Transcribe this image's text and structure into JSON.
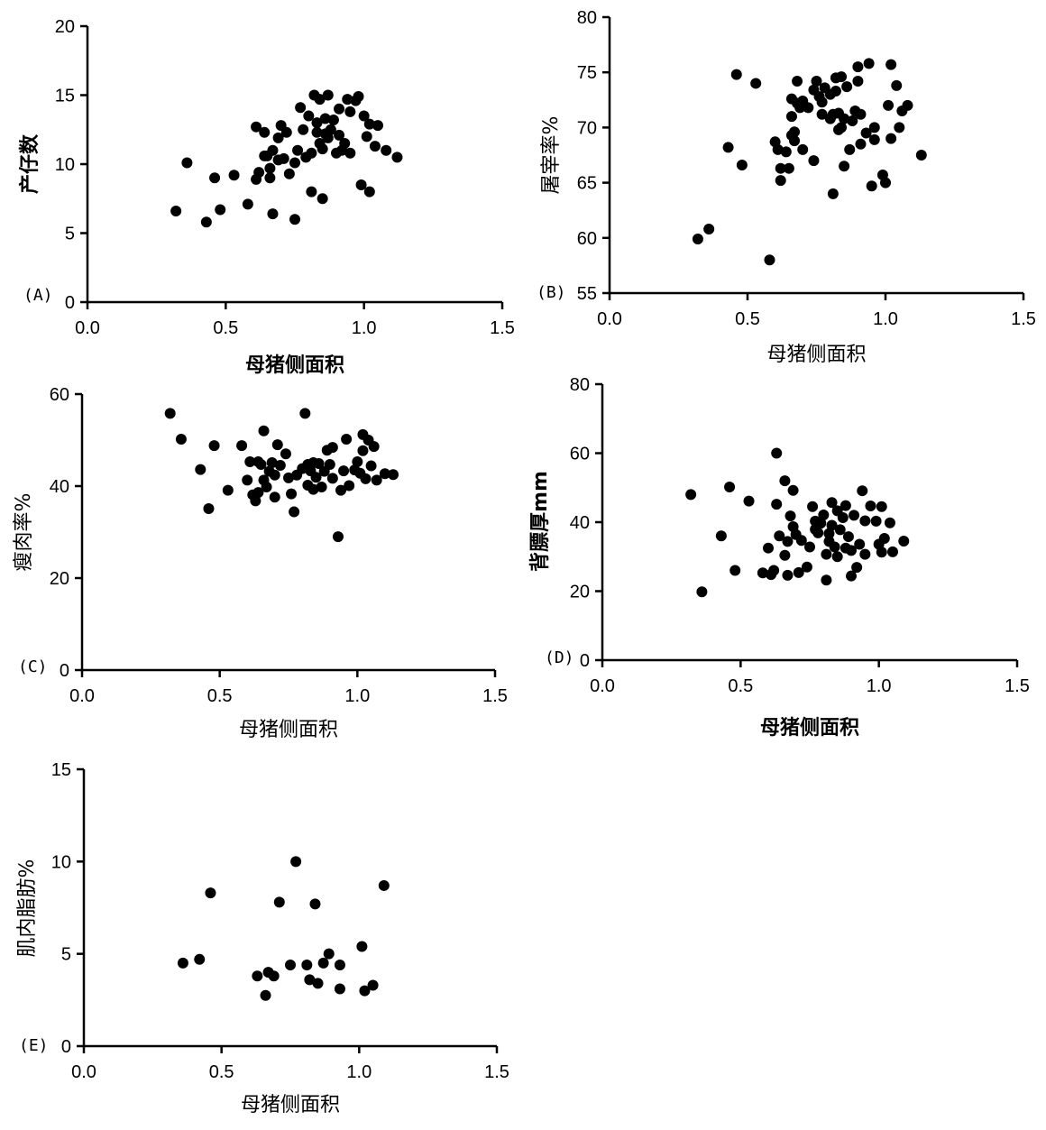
{
  "chart_data": [
    {
      "type": "scatter",
      "panel": "(A)",
      "xlabel": "母猪侧面积",
      "ylabel": "产仔数",
      "xlim": [
        0,
        1.5
      ],
      "ylim": [
        0,
        20
      ],
      "xticks": [
        "0.0",
        "0.5",
        "1.0",
        "1.5"
      ],
      "yticks": [
        "0",
        "5",
        "10",
        "15",
        "20"
      ],
      "points": [
        [
          0.32,
          6.6
        ],
        [
          0.36,
          10.1
        ],
        [
          0.43,
          5.8
        ],
        [
          0.46,
          9.0
        ],
        [
          0.48,
          6.7
        ],
        [
          0.53,
          9.2
        ],
        [
          0.58,
          7.1
        ],
        [
          0.61,
          8.9
        ],
        [
          0.61,
          12.7
        ],
        [
          0.62,
          9.4
        ],
        [
          0.64,
          12.3
        ],
        [
          0.64,
          10.6
        ],
        [
          0.65,
          10.6
        ],
        [
          0.66,
          9.7
        ],
        [
          0.66,
          9.0
        ],
        [
          0.67,
          11.0
        ],
        [
          0.67,
          6.4
        ],
        [
          0.69,
          10.3
        ],
        [
          0.69,
          11.9
        ],
        [
          0.7,
          12.8
        ],
        [
          0.71,
          10.4
        ],
        [
          0.72,
          12.3
        ],
        [
          0.73,
          9.3
        ],
        [
          0.75,
          6.0
        ],
        [
          0.75,
          10.1
        ],
        [
          0.76,
          11.0
        ],
        [
          0.77,
          14.1
        ],
        [
          0.78,
          12.5
        ],
        [
          0.79,
          10.5
        ],
        [
          0.8,
          13.5
        ],
        [
          0.81,
          8.0
        ],
        [
          0.81,
          10.8
        ],
        [
          0.82,
          15.0
        ],
        [
          0.83,
          13.0
        ],
        [
          0.83,
          12.3
        ],
        [
          0.84,
          11.5
        ],
        [
          0.84,
          14.7
        ],
        [
          0.85,
          7.5
        ],
        [
          0.85,
          11.1
        ],
        [
          0.86,
          12.2
        ],
        [
          0.86,
          13.3
        ],
        [
          0.87,
          11.9
        ],
        [
          0.87,
          15.0
        ],
        [
          0.88,
          12.5
        ],
        [
          0.89,
          13.2
        ],
        [
          0.9,
          10.8
        ],
        [
          0.91,
          14.0
        ],
        [
          0.91,
          12.1
        ],
        [
          0.92,
          11.0
        ],
        [
          0.93,
          11.5
        ],
        [
          0.94,
          14.7
        ],
        [
          0.95,
          10.8
        ],
        [
          0.95,
          13.8
        ],
        [
          0.97,
          14.6
        ],
        [
          0.98,
          14.9
        ],
        [
          0.99,
          8.5
        ],
        [
          1.0,
          13.5
        ],
        [
          1.01,
          12.0
        ],
        [
          1.02,
          8.0
        ],
        [
          1.02,
          12.9
        ],
        [
          1.04,
          11.3
        ],
        [
          1.05,
          12.8
        ],
        [
          1.08,
          11.0
        ],
        [
          1.12,
          10.5
        ]
      ]
    },
    {
      "type": "scatter",
      "panel": "(B)",
      "xlabel": "母猪侧面积",
      "ylabel": "屠宰率%",
      "xlim": [
        0,
        1.5
      ],
      "ylim": [
        55,
        80
      ],
      "xticks": [
        "0.0",
        "0.5",
        "1.0",
        "1.5"
      ],
      "yticks": [
        "55",
        "60",
        "65",
        "70",
        "75",
        "80"
      ],
      "points": [
        [
          0.32,
          59.9
        ],
        [
          0.36,
          60.8
        ],
        [
          0.43,
          68.2
        ],
        [
          0.46,
          74.8
        ],
        [
          0.48,
          66.6
        ],
        [
          0.53,
          74.0
        ],
        [
          0.58,
          58.0
        ],
        [
          0.6,
          68.7
        ],
        [
          0.61,
          68.0
        ],
        [
          0.62,
          66.3
        ],
        [
          0.62,
          65.2
        ],
        [
          0.64,
          67.8
        ],
        [
          0.65,
          66.3
        ],
        [
          0.66,
          72.6
        ],
        [
          0.66,
          71.0
        ],
        [
          0.66,
          69.3
        ],
        [
          0.67,
          68.8
        ],
        [
          0.67,
          69.6
        ],
        [
          0.68,
          72.2
        ],
        [
          0.68,
          74.2
        ],
        [
          0.69,
          71.8
        ],
        [
          0.7,
          72.4
        ],
        [
          0.7,
          68.0
        ],
        [
          0.72,
          71.8
        ],
        [
          0.74,
          73.4
        ],
        [
          0.74,
          67.0
        ],
        [
          0.75,
          74.2
        ],
        [
          0.76,
          72.8
        ],
        [
          0.77,
          71.2
        ],
        [
          0.77,
          72.3
        ],
        [
          0.78,
          73.6
        ],
        [
          0.8,
          73.0
        ],
        [
          0.8,
          70.8
        ],
        [
          0.81,
          71.2
        ],
        [
          0.81,
          64.0
        ],
        [
          0.82,
          74.5
        ],
        [
          0.82,
          73.3
        ],
        [
          0.83,
          71.3
        ],
        [
          0.83,
          69.8
        ],
        [
          0.84,
          74.6
        ],
        [
          0.84,
          70.0
        ],
        [
          0.85,
          66.5
        ],
        [
          0.85,
          70.8
        ],
        [
          0.86,
          73.7
        ],
        [
          0.87,
          68.0
        ],
        [
          0.88,
          70.6
        ],
        [
          0.89,
          71.5
        ],
        [
          0.9,
          74.2
        ],
        [
          0.9,
          75.5
        ],
        [
          0.91,
          68.5
        ],
        [
          0.91,
          71.2
        ],
        [
          0.93,
          69.5
        ],
        [
          0.94,
          75.8
        ],
        [
          0.95,
          64.7
        ],
        [
          0.96,
          70.0
        ],
        [
          0.96,
          68.9
        ],
        [
          0.99,
          65.7
        ],
        [
          1.0,
          65.0
        ],
        [
          1.01,
          72.0
        ],
        [
          1.02,
          69.0
        ],
        [
          1.02,
          75.7
        ],
        [
          1.04,
          73.8
        ],
        [
          1.05,
          70.0
        ],
        [
          1.06,
          71.5
        ],
        [
          1.08,
          72.0
        ],
        [
          1.13,
          67.5
        ]
      ]
    },
    {
      "type": "scatter",
      "panel": "(C)",
      "xlabel": "母猪侧面积",
      "ylabel": "瘦肉率%",
      "xlim": [
        0,
        1.5
      ],
      "ylim": [
        0,
        60
      ],
      "xticks": [
        "0.0",
        "0.5",
        "1.0",
        "1.5"
      ],
      "yticks": [
        "0",
        "20",
        "40",
        "60"
      ],
      "points": [
        [
          0.32,
          55.8
        ],
        [
          0.36,
          50.2
        ],
        [
          0.43,
          43.6
        ],
        [
          0.46,
          35.1
        ],
        [
          0.48,
          48.8
        ],
        [
          0.53,
          39.1
        ],
        [
          0.58,
          48.8
        ],
        [
          0.6,
          41.3
        ],
        [
          0.61,
          45.3
        ],
        [
          0.62,
          38.1
        ],
        [
          0.63,
          36.8
        ],
        [
          0.64,
          45.3
        ],
        [
          0.64,
          38.6
        ],
        [
          0.65,
          44.7
        ],
        [
          0.66,
          52.0
        ],
        [
          0.66,
          41.3
        ],
        [
          0.67,
          39.8
        ],
        [
          0.68,
          43.2
        ],
        [
          0.69,
          45.1
        ],
        [
          0.7,
          37.6
        ],
        [
          0.7,
          42.4
        ],
        [
          0.71,
          49.0
        ],
        [
          0.72,
          44.5
        ],
        [
          0.74,
          47.0
        ],
        [
          0.75,
          41.8
        ],
        [
          0.76,
          38.3
        ],
        [
          0.77,
          34.4
        ],
        [
          0.78,
          42.4
        ],
        [
          0.8,
          43.8
        ],
        [
          0.81,
          55.8
        ],
        [
          0.82,
          40.2
        ],
        [
          0.82,
          44.7
        ],
        [
          0.83,
          43.3
        ],
        [
          0.84,
          45.1
        ],
        [
          0.84,
          39.3
        ],
        [
          0.85,
          41.9
        ],
        [
          0.86,
          44.9
        ],
        [
          0.87,
          39.8
        ],
        [
          0.88,
          43.2
        ],
        [
          0.89,
          47.8
        ],
        [
          0.9,
          44.7
        ],
        [
          0.91,
          41.7
        ],
        [
          0.91,
          48.4
        ],
        [
          0.93,
          29.0
        ],
        [
          0.94,
          39.1
        ],
        [
          0.95,
          43.3
        ],
        [
          0.96,
          50.2
        ],
        [
          0.97,
          40.1
        ],
        [
          0.99,
          43.5
        ],
        [
          1.0,
          45.3
        ],
        [
          1.01,
          42.8
        ],
        [
          1.02,
          47.7
        ],
        [
          1.02,
          51.2
        ],
        [
          1.03,
          41.6
        ],
        [
          1.04,
          50.0
        ],
        [
          1.05,
          44.4
        ],
        [
          1.06,
          48.6
        ],
        [
          1.07,
          41.3
        ],
        [
          1.1,
          42.7
        ],
        [
          1.13,
          42.5
        ]
      ]
    },
    {
      "type": "scatter",
      "panel": "(D)",
      "xlabel": "母猪侧面积",
      "ylabel": "背膘厚mm",
      "xlim": [
        0,
        1.5
      ],
      "ylim": [
        0,
        80
      ],
      "xticks": [
        "0.0",
        "0.5",
        "1.0",
        "1.5"
      ],
      "yticks": [
        "0",
        "20",
        "40",
        "60",
        "80"
      ],
      "points": [
        [
          0.32,
          48.0
        ],
        [
          0.36,
          19.8
        ],
        [
          0.43,
          36.0
        ],
        [
          0.46,
          50.2
        ],
        [
          0.48,
          26.0
        ],
        [
          0.53,
          46.1
        ],
        [
          0.58,
          25.3
        ],
        [
          0.6,
          32.5
        ],
        [
          0.61,
          24.8
        ],
        [
          0.62,
          26.0
        ],
        [
          0.63,
          60.0
        ],
        [
          0.63,
          45.2
        ],
        [
          0.64,
          36.0
        ],
        [
          0.66,
          52.0
        ],
        [
          0.66,
          30.4
        ],
        [
          0.67,
          24.6
        ],
        [
          0.67,
          34.4
        ],
        [
          0.68,
          41.8
        ],
        [
          0.69,
          38.7
        ],
        [
          0.69,
          49.2
        ],
        [
          0.7,
          36.4
        ],
        [
          0.71,
          25.4
        ],
        [
          0.72,
          34.7
        ],
        [
          0.74,
          27.0
        ],
        [
          0.75,
          32.8
        ],
        [
          0.76,
          44.5
        ],
        [
          0.77,
          37.9
        ],
        [
          0.77,
          40.3
        ],
        [
          0.78,
          36.9
        ],
        [
          0.79,
          39.7
        ],
        [
          0.8,
          42.1
        ],
        [
          0.81,
          30.7
        ],
        [
          0.81,
          23.2
        ],
        [
          0.82,
          36.7
        ],
        [
          0.82,
          34.4
        ],
        [
          0.83,
          45.7
        ],
        [
          0.83,
          39.1
        ],
        [
          0.84,
          32.8
        ],
        [
          0.85,
          43.3
        ],
        [
          0.85,
          30.0
        ],
        [
          0.86,
          37.8
        ],
        [
          0.87,
          41.3
        ],
        [
          0.88,
          32.5
        ],
        [
          0.88,
          44.8
        ],
        [
          0.89,
          35.8
        ],
        [
          0.9,
          24.4
        ],
        [
          0.9,
          31.8
        ],
        [
          0.91,
          42.0
        ],
        [
          0.92,
          26.9
        ],
        [
          0.93,
          33.6
        ],
        [
          0.94,
          49.1
        ],
        [
          0.95,
          30.7
        ],
        [
          0.95,
          40.4
        ],
        [
          0.97,
          44.7
        ],
        [
          0.99,
          40.3
        ],
        [
          1.0,
          33.6
        ],
        [
          1.01,
          44.5
        ],
        [
          1.01,
          31.3
        ],
        [
          1.02,
          35.3
        ],
        [
          1.04,
          39.8
        ],
        [
          1.05,
          31.4
        ],
        [
          1.09,
          34.5
        ]
      ]
    },
    {
      "type": "scatter",
      "panel": "(E)",
      "xlabel": "母猪侧面积",
      "ylabel": "肌内脂肪%",
      "xlim": [
        0,
        1.5
      ],
      "ylim": [
        0,
        15
      ],
      "xticks": [
        "0.0",
        "0.5",
        "1.0",
        "1.5"
      ],
      "yticks": [
        "0",
        "5",
        "10",
        "15"
      ],
      "points": [
        [
          0.36,
          4.5
        ],
        [
          0.42,
          4.7
        ],
        [
          0.46,
          8.3
        ],
        [
          0.63,
          3.8
        ],
        [
          0.66,
          2.75
        ],
        [
          0.67,
          4.0
        ],
        [
          0.69,
          3.8
        ],
        [
          0.71,
          7.8
        ],
        [
          0.75,
          4.4
        ],
        [
          0.77,
          10.0
        ],
        [
          0.81,
          4.4
        ],
        [
          0.82,
          3.6
        ],
        [
          0.84,
          7.7
        ],
        [
          0.85,
          3.4
        ],
        [
          0.87,
          4.5
        ],
        [
          0.89,
          5.0
        ],
        [
          0.93,
          4.4
        ],
        [
          0.93,
          3.1
        ],
        [
          1.01,
          5.4
        ],
        [
          1.02,
          3.0
        ],
        [
          1.05,
          3.3
        ],
        [
          1.09,
          8.7
        ]
      ]
    }
  ]
}
